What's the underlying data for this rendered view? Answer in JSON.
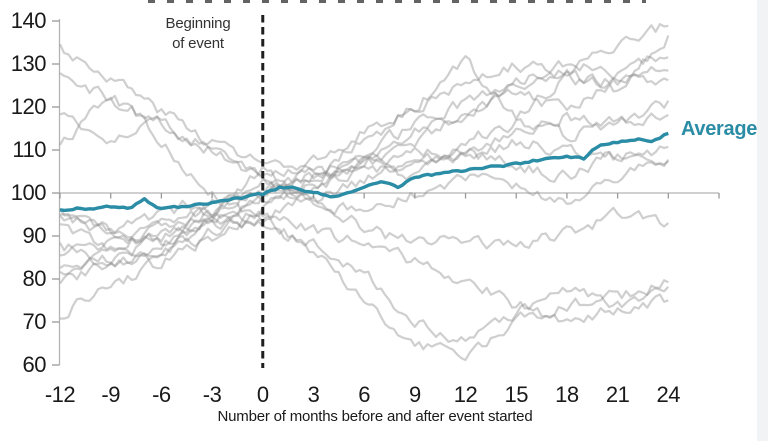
{
  "figure": {
    "annotation": {
      "line1": "Beginning",
      "line2": "of event"
    },
    "average_label": "Average",
    "xlabel": "Number of months before and after event started"
  },
  "colors": {
    "average": "#2b8ca6",
    "gray_line": "#8c8c8c",
    "gray_opacity": 0.42,
    "axis": "#b3b3b3",
    "tick": "#999999",
    "event_dash": "#1f1f1f",
    "text": "#1a1a1a",
    "annotation_text": "#333333",
    "edge_strip": "#f2f3f5"
  },
  "chart_data": {
    "type": "line",
    "title": "",
    "xlabel": "Number of months before and after event started",
    "ylabel": "",
    "xlim": [
      -12,
      27
    ],
    "ylim": [
      60,
      140
    ],
    "x_ticks": [
      -12,
      -9,
      -6,
      -3,
      0,
      3,
      6,
      9,
      12,
      15,
      18,
      21,
      24
    ],
    "y_ticks": [
      60,
      70,
      80,
      90,
      100,
      110,
      120,
      130,
      140
    ],
    "grid": "single horizontal baseline at y=100 with downward ticks every 3 months",
    "event_line_x": 0,
    "legend_position": "label at right end of average line",
    "average_series": {
      "name": "Average",
      "x_start": -12,
      "x_step": 1,
      "values": [
        96,
        96.6,
        96.2,
        96.8,
        96.3,
        98.3,
        96.4,
        96.8,
        97.4,
        97.9,
        98.4,
        99,
        99.6,
        101.2,
        101.1,
        100.1,
        99.3,
        100,
        101.1,
        102.4,
        101.4,
        103.8,
        104.3,
        104.8,
        105.3,
        105.9,
        106.3,
        106.7,
        107.4,
        108.1,
        108.8,
        108,
        111.4,
        112,
        112.5,
        112.3,
        113.8
      ]
    },
    "background_series": {
      "note": "individual event episodes (gray), values estimated from pixels",
      "x": [
        -12,
        -9,
        -6,
        -3,
        0,
        3,
        6,
        9,
        12,
        15,
        18,
        21,
        24
      ],
      "series": [
        [
          134,
          127,
          119,
          112,
          107,
          104,
          106,
          104,
          108,
          112,
          110,
          108,
          111
        ],
        [
          128,
          122,
          116,
          110,
          104,
          97,
          92,
          88,
          90,
          87,
          91,
          95,
          93
        ],
        [
          118,
          113,
          116,
          110,
          103,
          108,
          114,
          120,
          126,
          130,
          128,
          134,
          139
        ],
        [
          110,
          123,
          112,
          100,
          93,
          100,
          107,
          112,
          118,
          123,
          120,
          126,
          127
        ],
        [
          96,
          92,
          95,
          99,
          100,
          105,
          112,
          120,
          131,
          118,
          127,
          124,
          136
        ],
        [
          95,
          91,
          88,
          94,
          98,
          103,
          106,
          110,
          108,
          114,
          118,
          115,
          121
        ],
        [
          94,
          90,
          92,
          96,
          102,
          98,
          103,
          107,
          110,
          106,
          104,
          109,
          108
        ],
        [
          92,
          88,
          85,
          91,
          95,
          87,
          74,
          65,
          63,
          70,
          74,
          76,
          79
        ],
        [
          88,
          84,
          86,
          92,
          93,
          92,
          88,
          84,
          80,
          74,
          70,
          73,
          75
        ],
        [
          85,
          88,
          90,
          94,
          99,
          104,
          108,
          106,
          112,
          116,
          113,
          117,
          118
        ],
        [
          82,
          86,
          92,
          96,
          101,
          104,
          110,
          116,
          121,
          126,
          130,
          128,
          133
        ],
        [
          81,
          85,
          90,
          95,
          105,
          99,
          95,
          100,
          104,
          101,
          98,
          104,
          107
        ],
        [
          80,
          83,
          88,
          94,
          92,
          88,
          82,
          70,
          66,
          72,
          77,
          74,
          77
        ],
        [
          72,
          78,
          84,
          90,
          97,
          102,
          108,
          114,
          119,
          124,
          127,
          126,
          130
        ]
      ]
    }
  }
}
